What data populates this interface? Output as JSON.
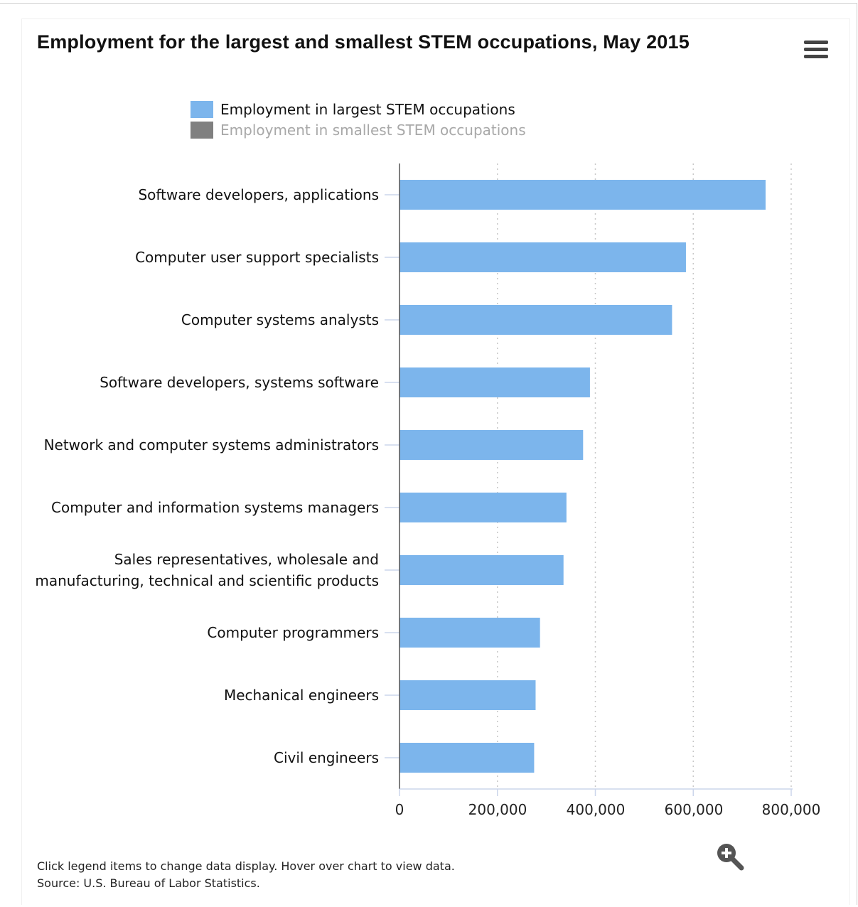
{
  "chart": {
    "title": "Employment for the largest and smallest STEM occupations, May 2015",
    "menu_icon": "hamburger-menu-icon",
    "zoom_icon": "zoom-in-icon",
    "caption_line1": "Click legend items to change data display. Hover over chart to view data.",
    "caption_line2": "Source: U.S. Bureau of Labor Statistics.",
    "legend": [
      {
        "label": "Employment in largest STEM occupations",
        "color": "#7cb5ec",
        "state": "active"
      },
      {
        "label": "Employment in smallest STEM occupations",
        "color": "#808080",
        "state": "hidden"
      }
    ],
    "x_ticks": [
      "0",
      "200,000",
      "400,000",
      "600,000",
      "800,000"
    ]
  },
  "chart_data": {
    "type": "bar",
    "orientation": "horizontal",
    "title": "Employment for the largest and smallest STEM occupations, May 2015",
    "categories": [
      "Software developers, applications",
      "Computer user support specialists",
      "Computer systems analysts",
      "Software developers, systems software",
      "Network and computer systems administrators",
      "Computer and information systems managers",
      "Sales representatives, wholesale and manufacturing, technical and scientific products",
      "Computer programmers",
      "Mechanical engineers",
      "Civil engineers"
    ],
    "category_lines": [
      [
        "Software developers, applications"
      ],
      [
        "Computer user support specialists"
      ],
      [
        "Computer systems analysts"
      ],
      [
        "Software developers, systems software"
      ],
      [
        "Network and computer systems administrators"
      ],
      [
        "Computer and information systems managers"
      ],
      [
        "Sales representatives, wholesale and",
        "manufacturing, technical and scientific products"
      ],
      [
        "Computer programmers"
      ],
      [
        "Mechanical engineers"
      ],
      [
        "Civil engineers"
      ]
    ],
    "series": [
      {
        "name": "Employment in largest STEM occupations",
        "values": [
          747730,
          585060,
          556660,
          389000,
          375000,
          341000,
          335000,
          287000,
          278000,
          275000
        ]
      }
    ],
    "xlim": [
      0,
      800000
    ],
    "xticks": [
      0,
      200000,
      400000,
      600000,
      800000
    ],
    "grid": "vertical-dotted",
    "legend_position": "top"
  }
}
